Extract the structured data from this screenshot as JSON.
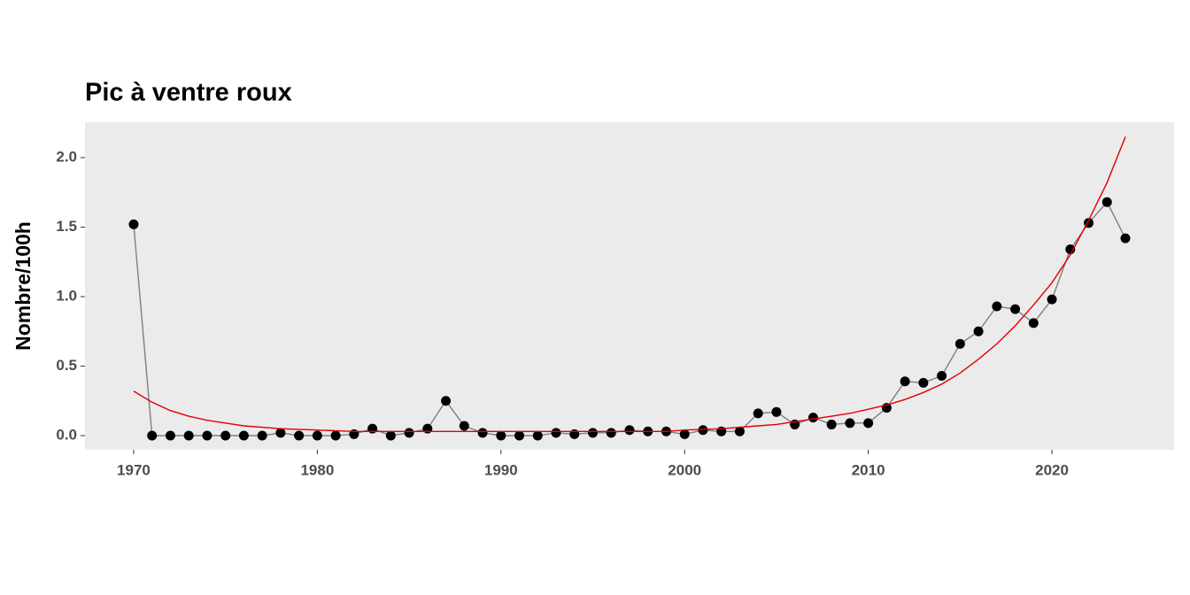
{
  "chart_data": {
    "type": "line",
    "title": "Pic à ventre roux",
    "ylabel": "Nombre/100h",
    "x": [
      1970,
      1971,
      1972,
      1973,
      1974,
      1975,
      1976,
      1977,
      1978,
      1979,
      1980,
      1981,
      1982,
      1983,
      1984,
      1985,
      1986,
      1987,
      1988,
      1989,
      1990,
      1991,
      1992,
      1993,
      1994,
      1995,
      1996,
      1997,
      1998,
      1999,
      2000,
      2001,
      2002,
      2003,
      2004,
      2005,
      2006,
      2007,
      2008,
      2009,
      2010,
      2011,
      2012,
      2013,
      2014,
      2015,
      2016,
      2017,
      2018,
      2019,
      2020,
      2021,
      2022,
      2023,
      2024
    ],
    "series": [
      {
        "color": "#7f7f7f",
        "marker_color": "#000000",
        "markers": true,
        "values": [
          1.52,
          0,
          0,
          0,
          0,
          0,
          0,
          0,
          0.02,
          0,
          0,
          0,
          0.01,
          0.05,
          0,
          0.02,
          0.05,
          0.25,
          0.07,
          0.02,
          0,
          0,
          0,
          0.02,
          0.01,
          0.02,
          0.02,
          0.04,
          0.03,
          0.03,
          0.01,
          0.04,
          0.03,
          0.03,
          0.16,
          0.17,
          0.08,
          0.13,
          0.08,
          0.09,
          0.09,
          0.2,
          0.39,
          0.38,
          0.43,
          0.66,
          0.75,
          0.93,
          0.91,
          0.81,
          0.98,
          1.34,
          1.53,
          1.68,
          1.42
        ]
      },
      {
        "color": "#e00000",
        "markers": false,
        "values": [
          0.32,
          0.24,
          0.18,
          0.14,
          0.11,
          0.09,
          0.07,
          0.06,
          0.05,
          0.045,
          0.04,
          0.035,
          0.03,
          0.03,
          0.03,
          0.03,
          0.03,
          0.03,
          0.03,
          0.03,
          0.03,
          0.03,
          0.03,
          0.03,
          0.03,
          0.03,
          0.03,
          0.03,
          0.03,
          0.03,
          0.04,
          0.045,
          0.05,
          0.06,
          0.07,
          0.08,
          0.1,
          0.12,
          0.14,
          0.16,
          0.19,
          0.22,
          0.26,
          0.31,
          0.37,
          0.45,
          0.55,
          0.66,
          0.79,
          0.94,
          1.1,
          1.3,
          1.55,
          1.82,
          2.15
        ]
      }
    ],
    "xlim": [
      1967.35,
      2026.65
    ],
    "xticks": [
      1970,
      1980,
      1990,
      2000,
      2010,
      2020
    ],
    "ylim": [
      -0.102,
      2.255
    ],
    "yticks": [
      {
        "value": 0,
        "label": "0.0"
      },
      {
        "value": 0.5,
        "label": "0.5"
      },
      {
        "value": 1,
        "label": "1.0"
      },
      {
        "value": 1.5,
        "label": "1.5"
      },
      {
        "value": 2,
        "label": "2.0"
      }
    ],
    "grid": false,
    "panel_color": "#ebebeb"
  }
}
